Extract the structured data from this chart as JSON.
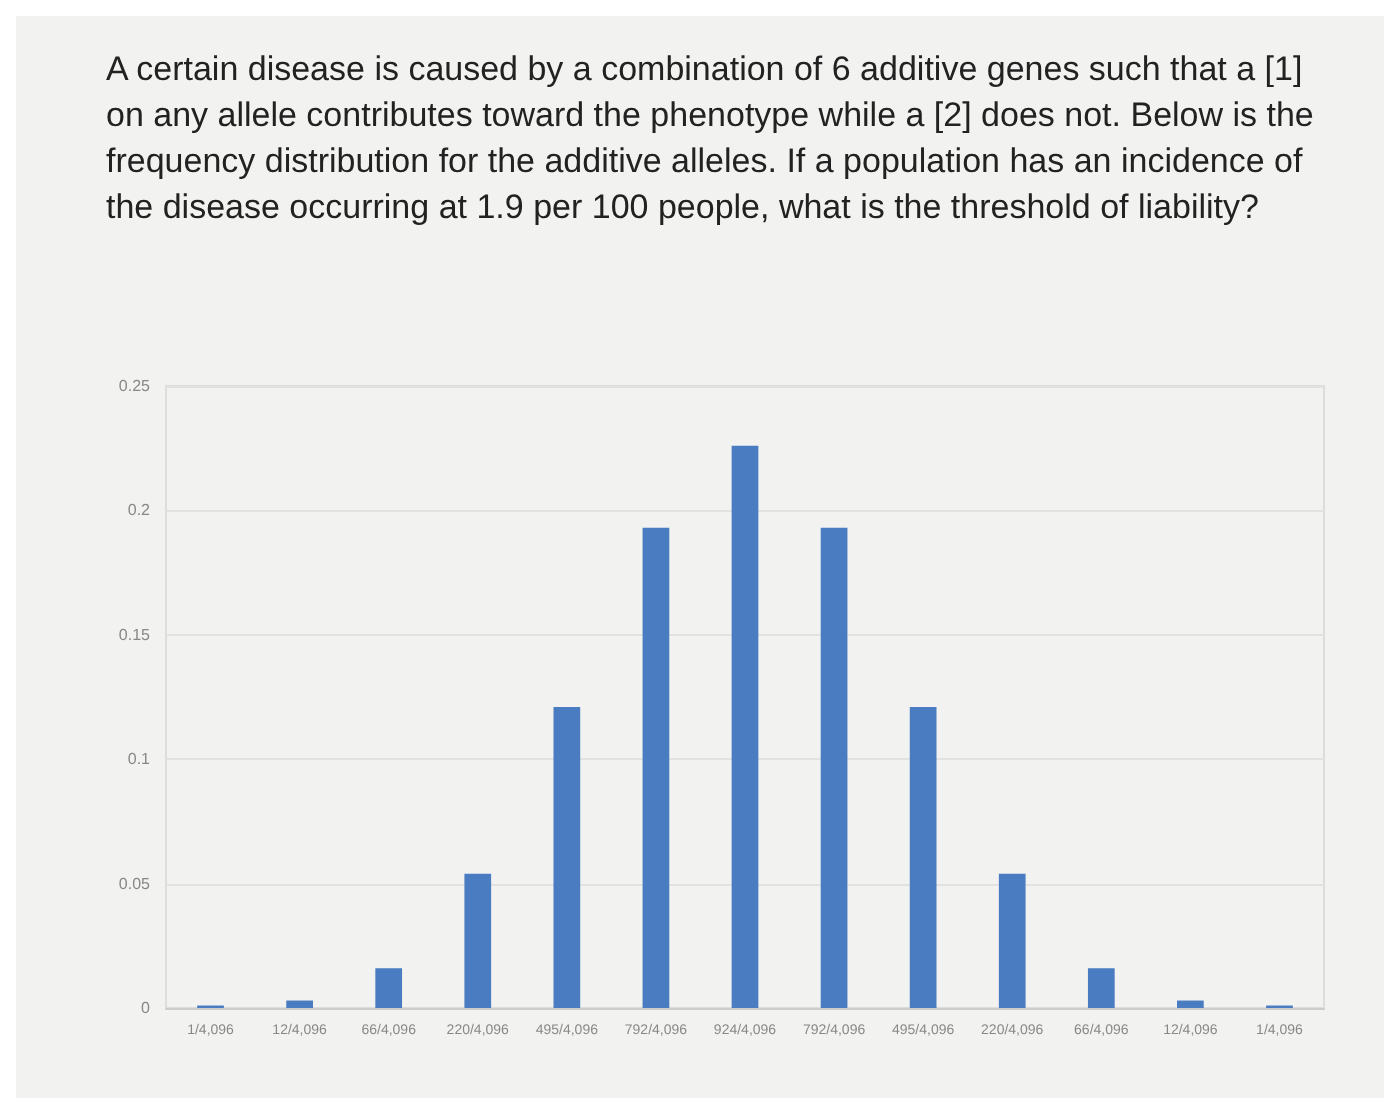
{
  "chart_data": {
    "type": "bar",
    "title": "A certain disease is caused by a combination of 6 additive genes such that a [1] on any allele contributes toward the phenotype while a [2] does not. Below is the frequency distribution for the additive alleles. If a population has an incidence of the disease occurring at 1.9 per 100 people, what is the threshold of liability?",
    "categories": [
      "1/4,096",
      "12/4,096",
      "66/4,096",
      "220/4,096",
      "495/4,096",
      "792/4,096",
      "924/4,096",
      "792/4,096",
      "495/4,096",
      "220/4,096",
      "66/4,096",
      "12/4,096",
      "1/4,096"
    ],
    "values": [
      0.001,
      0.003,
      0.016,
      0.054,
      0.121,
      0.193,
      0.226,
      0.193,
      0.121,
      0.054,
      0.016,
      0.003,
      0.001
    ],
    "color": "#4a7cc1",
    "ylim": [
      0,
      0.25
    ],
    "yticks": [
      0,
      0.05,
      0.1,
      0.15,
      0.2,
      0.25
    ],
    "grid": "y"
  }
}
